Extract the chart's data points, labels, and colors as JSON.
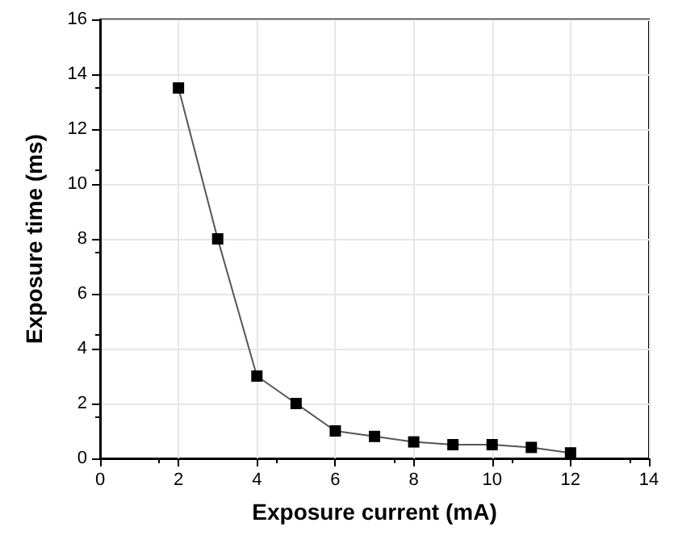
{
  "chart_data": {
    "type": "line",
    "xlabel": "Exposure current (mA)",
    "ylabel": "Exposure time (ms)",
    "x": [
      2,
      3,
      4,
      5,
      6,
      7,
      8,
      9,
      10,
      11,
      12
    ],
    "series": [
      {
        "color": "#000000",
        "values": [
          13.5,
          8,
          3,
          2,
          1,
          0.8,
          0.6,
          0.5,
          0.5,
          0.4,
          0.2
        ]
      }
    ],
    "xlim": [
      0,
      14
    ],
    "xticks": [
      0,
      2,
      4,
      6,
      8,
      10,
      12,
      14
    ],
    "ylim": [
      0,
      16
    ],
    "yticks": [
      0,
      2,
      4,
      6,
      8,
      10,
      12,
      14,
      16
    ],
    "grid": true,
    "marker": "square",
    "line_style": "solid"
  }
}
